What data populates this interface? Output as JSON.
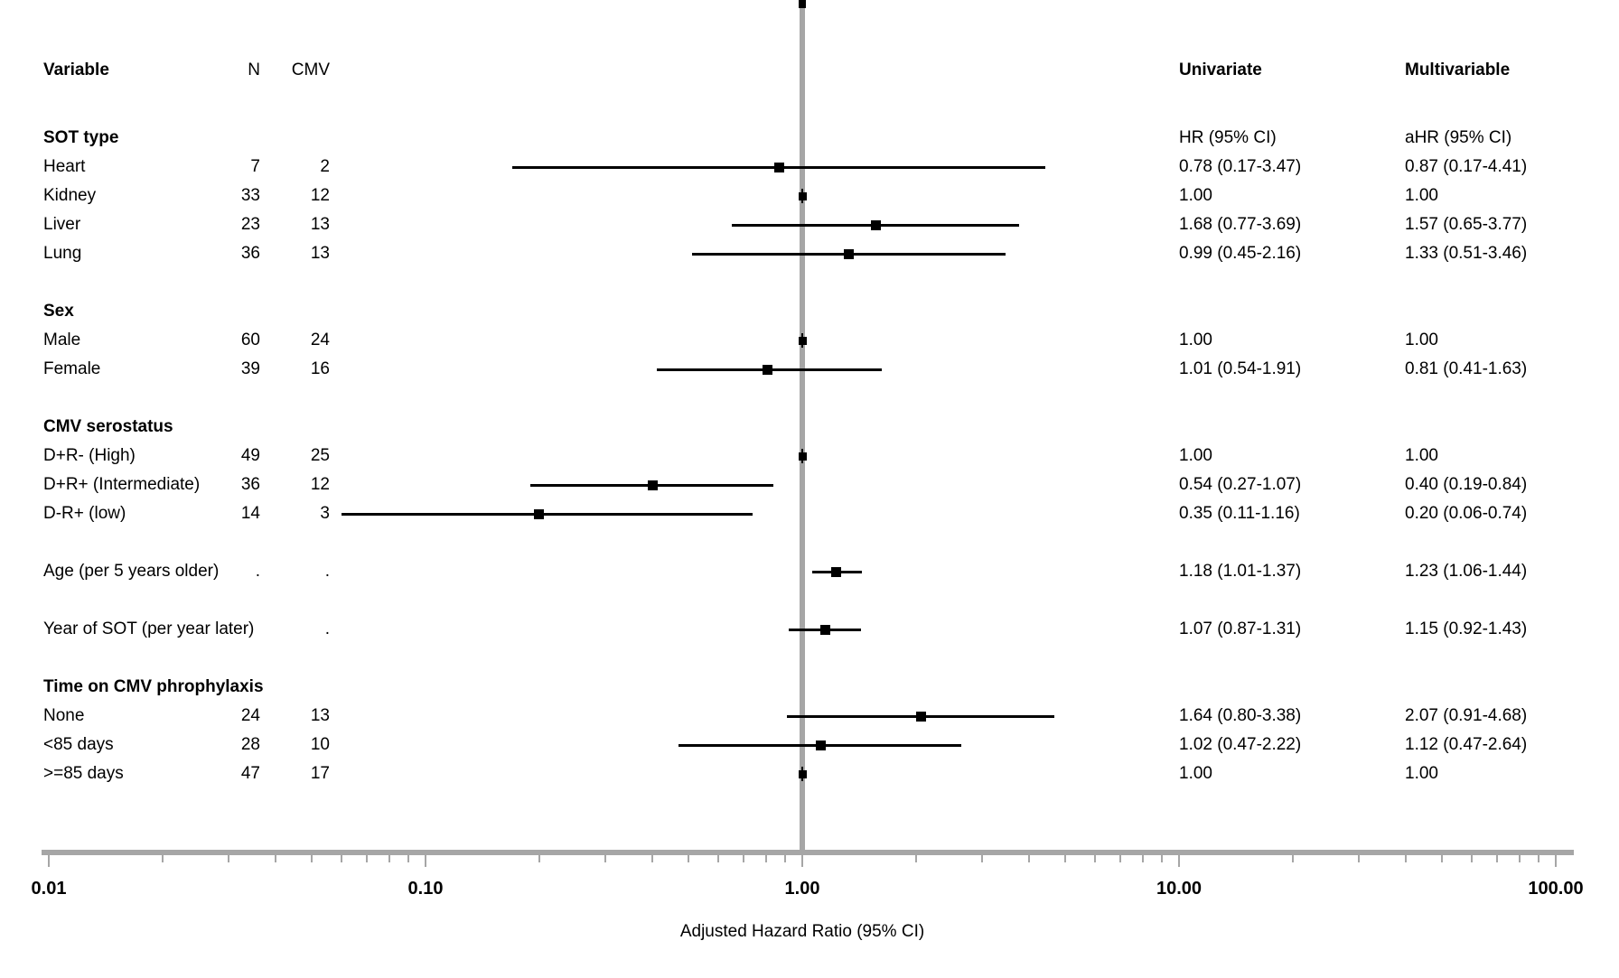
{
  "header": {
    "variable": "Variable",
    "n": "N",
    "cmv": "CMV",
    "univariate": "Univariate",
    "multivariable": "Multivariable"
  },
  "axis": {
    "title": "Adjusted Hazard Ratio (95% CI)",
    "tick_labels": [
      "0.01",
      "0.10",
      "1.00",
      "10.00",
      "100.00"
    ],
    "tick_values": [
      0.01,
      0.1,
      1,
      10,
      100
    ],
    "scale": "log10",
    "min": 0.01,
    "max": 100,
    "reference_line": 1.0
  },
  "colors": {
    "text": "#000000",
    "axis_gray": "#a6a6a6",
    "marker": "#000000",
    "background": "#ffffff"
  },
  "chart_data": {
    "type": "forest",
    "plotted_estimate": "multivariable aHR",
    "xlabel": "Adjusted Hazard Ratio (95% CI)",
    "x_scale": "log10",
    "xlim": [
      0.01,
      100
    ],
    "x_ticks": [
      0.01,
      0.1,
      1,
      10,
      100
    ],
    "reference_line": 1.0,
    "grid": false,
    "rows": [
      {
        "label": "SOT type",
        "kind": "section",
        "n": "",
        "cmv": "",
        "uni": "HR (95% CI)",
        "multi": "aHR (95% CI)"
      },
      {
        "label": "Heart",
        "kind": "item",
        "n": "7",
        "cmv": "2",
        "uni": "0.78 (0.17-3.47)",
        "multi": "0.87 (0.17-4.41)",
        "est": 0.87,
        "lo": 0.17,
        "hi": 4.41
      },
      {
        "label": "Kidney",
        "kind": "item",
        "n": "33",
        "cmv": "12",
        "uni": "1.00",
        "multi": "1.00",
        "ref": true
      },
      {
        "label": "Liver",
        "kind": "item",
        "n": "23",
        "cmv": "13",
        "uni": "1.68 (0.77-3.69)",
        "multi": "1.57 (0.65-3.77)",
        "est": 1.57,
        "lo": 0.65,
        "hi": 3.77
      },
      {
        "label": "Lung",
        "kind": "item",
        "n": "36",
        "cmv": "13",
        "uni": "0.99 (0.45-2.16)",
        "multi": "1.33 (0.51-3.46)",
        "est": 1.33,
        "lo": 0.51,
        "hi": 3.46
      },
      {
        "label": "Sex",
        "kind": "section",
        "gap": true,
        "n": "",
        "cmv": "",
        "uni": "",
        "multi": ""
      },
      {
        "label": "Male",
        "kind": "item",
        "n": "60",
        "cmv": "24",
        "uni": "1.00",
        "multi": "1.00",
        "ref": true
      },
      {
        "label": "Female",
        "kind": "item",
        "n": "39",
        "cmv": "16",
        "uni": "1.01 (0.54-1.91)",
        "multi": "0.81 (0.41-1.63)",
        "est": 0.81,
        "lo": 0.41,
        "hi": 1.63
      },
      {
        "label": "CMV serostatus",
        "kind": "section",
        "gap": true,
        "n": "",
        "cmv": "",
        "uni": "",
        "multi": ""
      },
      {
        "label": "D+R- (High)",
        "kind": "item",
        "n": "49",
        "cmv": "25",
        "uni": "1.00",
        "multi": "1.00",
        "ref": true
      },
      {
        "label": "D+R+ (Intermediate)",
        "kind": "item",
        "n": "36",
        "cmv": "12",
        "uni": "0.54 (0.27-1.07)",
        "multi": "0.40 (0.19-0.84)",
        "est": 0.4,
        "lo": 0.19,
        "hi": 0.84
      },
      {
        "label": "D-R+ (low)",
        "kind": "item",
        "n": "14",
        "cmv": "3",
        "uni": "0.35 (0.11-1.16)",
        "multi": "0.20 (0.06-0.74)",
        "est": 0.2,
        "lo": 0.06,
        "hi": 0.74
      },
      {
        "label": "Age (per 5 years older)",
        "kind": "item",
        "gap": true,
        "n": ".",
        "cmv": ".",
        "uni": "1.18 (1.01-1.37)",
        "multi": "1.23 (1.06-1.44)",
        "est": 1.23,
        "lo": 1.06,
        "hi": 1.44
      },
      {
        "label": "Year of SOT (per year later)",
        "kind": "item",
        "gap": true,
        "n": "",
        "cmv": ".",
        "uni": "1.07 (0.87-1.31)",
        "multi": "1.15 (0.92-1.43)",
        "est": 1.15,
        "lo": 0.92,
        "hi": 1.43
      },
      {
        "label": "Time on CMV phrophylaxis",
        "kind": "section",
        "gap": true,
        "n": "",
        "cmv": "",
        "uni": "",
        "multi": ""
      },
      {
        "label": "None",
        "kind": "item",
        "n": "24",
        "cmv": "13",
        "uni": "1.64 (0.80-3.38)",
        "multi": "2.07 (0.91-4.68)",
        "est": 2.07,
        "lo": 0.91,
        "hi": 4.68
      },
      {
        "label": "<85 days",
        "kind": "item",
        "n": "28",
        "cmv": "10",
        "uni": "1.02 (0.47-2.22)",
        "multi": "1.12 (0.47-2.64)",
        "est": 1.12,
        "lo": 0.47,
        "hi": 2.64
      },
      {
        "label": ">=85 days",
        "kind": "item",
        "n": "47",
        "cmv": "17",
        "uni": "1.00",
        "multi": "1.00",
        "ref": true
      }
    ]
  }
}
